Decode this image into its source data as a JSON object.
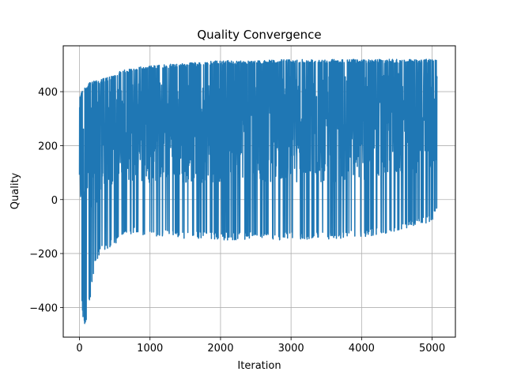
{
  "chart_data": {
    "type": "line",
    "title": "Quality Convergence",
    "xlabel": "Iteration",
    "ylabel": "Quality",
    "xlim": [
      -230,
      5330
    ],
    "ylim": [
      -510,
      570
    ],
    "xticks": [
      0,
      1000,
      2000,
      3000,
      4000,
      5000
    ],
    "yticks": [
      -400,
      -200,
      0,
      200,
      400
    ],
    "grid": true,
    "series": [
      {
        "color": "#1f77b4",
        "envelope": {
          "x": [
            0,
            50,
            100,
            150,
            200,
            300,
            400,
            500,
            600,
            800,
            1000,
            1200,
            1500,
            2000,
            2500,
            3000,
            3500,
            4000,
            4500,
            5000,
            5070
          ],
          "upper": [
            390,
            410,
            420,
            440,
            440,
            445,
            455,
            460,
            480,
            490,
            495,
            500,
            505,
            515,
            515,
            520,
            520,
            520,
            520,
            520,
            520
          ],
          "lower": [
            -210,
            -460,
            -460,
            -370,
            -270,
            -200,
            -180,
            -170,
            -130,
            -130,
            -140,
            -140,
            -145,
            -150,
            -150,
            -150,
            -150,
            -140,
            -120,
            -80,
            -50
          ]
        }
      }
    ]
  }
}
